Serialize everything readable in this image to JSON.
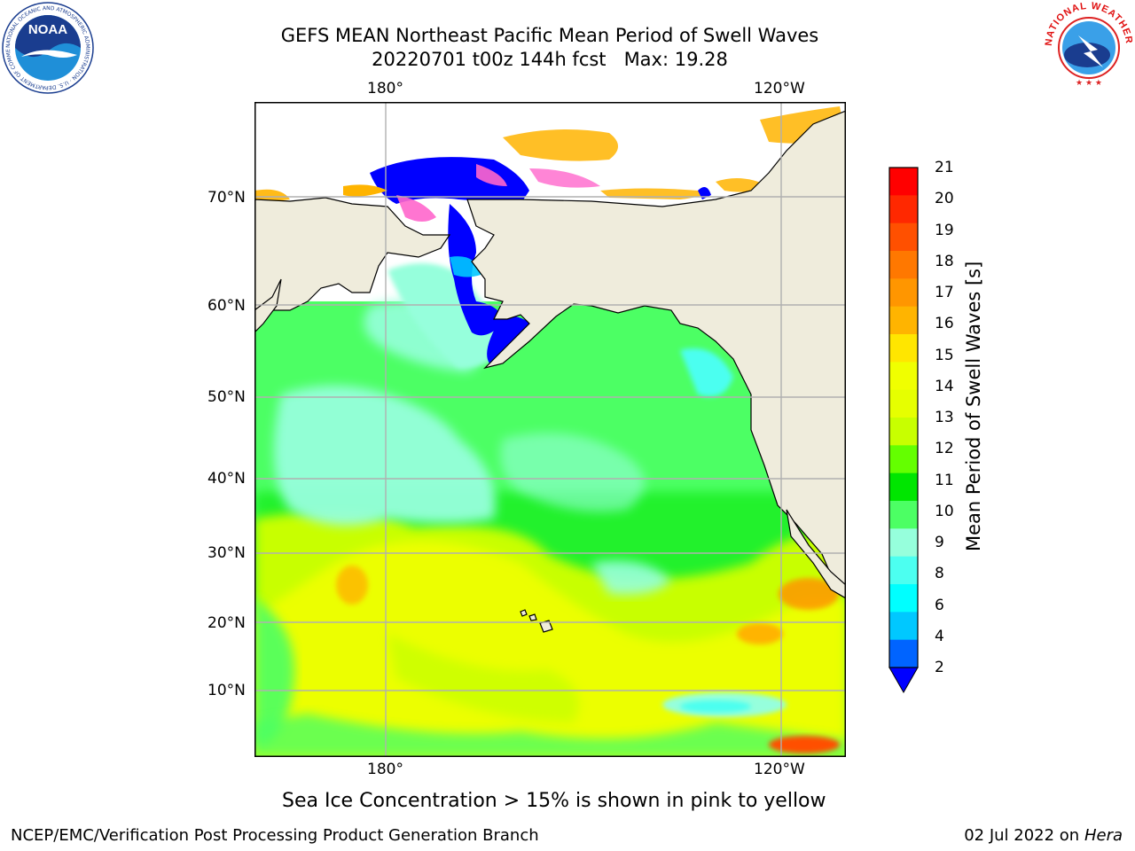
{
  "header": {
    "title_line1": "GEFS MEAN Northeast Pacific Mean Period of Swell Waves",
    "title_line2": "20220701 t00z 144h fcst   Max: 19.28"
  },
  "logos": {
    "left": {
      "text": "NOAA",
      "ring_text": "NATIONAL OCEANIC AND ATMOSPHERIC ADMINISTRATION · U.S. DEPARTMENT OF COMMERCE",
      "icon": "noaa-logo"
    },
    "right": {
      "ring_text": "NATIONAL WEATHER SERVICE",
      "icon": "nws-logo"
    }
  },
  "map": {
    "lon_labels_top": [
      "180°",
      "120°W"
    ],
    "lon_labels_bottom": [
      "180°",
      "120°W"
    ],
    "lat_labels": [
      "70°N",
      "60°N",
      "50°N",
      "40°N",
      "30°N",
      "20°N",
      "10°N"
    ],
    "land_color": "#efecdc",
    "grid_color": "#b0b0b0"
  },
  "colorbar": {
    "label": "Mean Period of Swell Waves [s]",
    "ticks": [
      "21",
      "20",
      "19",
      "18",
      "17",
      "16",
      "15",
      "14",
      "13",
      "12",
      "11",
      "10",
      "9",
      "8",
      "6",
      "4",
      "2"
    ],
    "colors_top_to_bottom": [
      "#ff0000",
      "#ff2800",
      "#ff5000",
      "#ff7800",
      "#ff9600",
      "#ffb400",
      "#ffe600",
      "#f0ff00",
      "#e6ff00",
      "#c8ff00",
      "#64ff00",
      "#00e600",
      "#4cff64",
      "#96ffdc",
      "#4cfff0",
      "#00ffff",
      "#00c8ff",
      "#0064ff"
    ],
    "extend_color": "#0000ff"
  },
  "note": "Sea Ice Concentration > 15% is shown in pink to yellow",
  "footer": {
    "left": "NCEP/EMC/Verification Post Processing Product Generation Branch",
    "date": "02 Jul 2022 on ",
    "machine": "Hera"
  }
}
